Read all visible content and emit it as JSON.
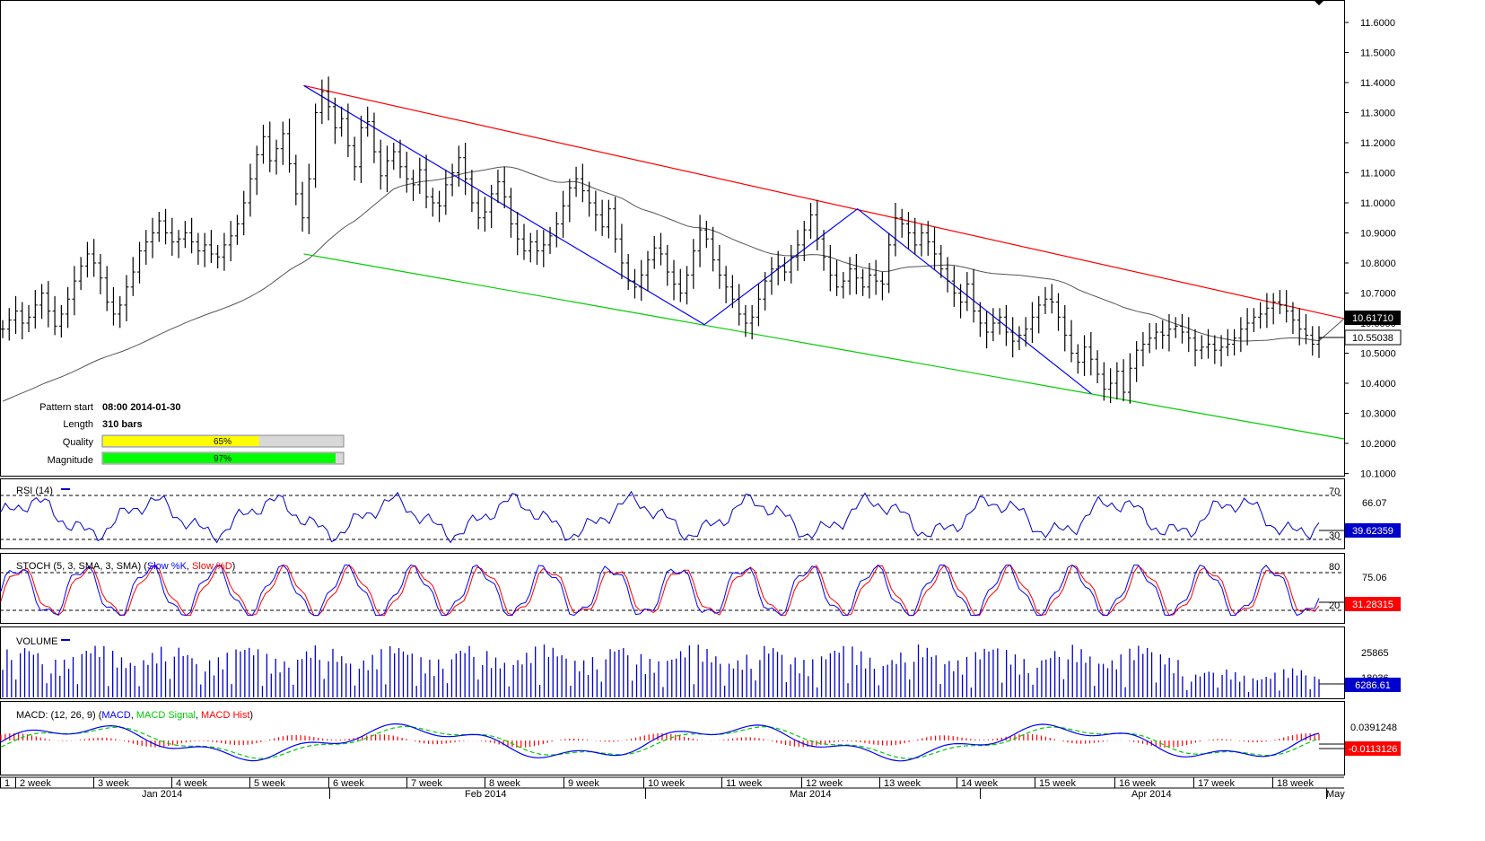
{
  "chart_data": [
    {
      "type": "candlestick",
      "panel": "price",
      "y_ticks": [
        "11.6000",
        "11.5000",
        "11.4000",
        "11.3000",
        "11.2000",
        "11.1000",
        "11.0000",
        "10.9000",
        "10.8000",
        "10.7000",
        "10.6000",
        "10.5000",
        "10.4000",
        "10.3000",
        "10.2000",
        "10.1000"
      ],
      "ylim": [
        10.08,
        11.66
      ],
      "price_labels": {
        "upper": "10.61710",
        "last": "10.55038"
      },
      "info": {
        "pattern_start_label": "Pattern start",
        "pattern_start_value": "08:00 2014-01-30",
        "length_label": "Length",
        "length_value": "310 bars",
        "quality_label": "Quality",
        "quality_value": "65%",
        "quality_pct": 0.65,
        "magnitude_label": "Magnitude",
        "magnitude_value": "97%",
        "magnitude_pct": 0.97
      },
      "lines": {
        "resistance": {
          "color": "#ff0000",
          "from": [
            0.226,
            11.39
          ],
          "to": [
            1.0,
            10.615
          ]
        },
        "support": {
          "color": "#00cc00",
          "from": [
            0.226,
            10.83
          ],
          "to": [
            1.0,
            10.215
          ]
        },
        "zigzag": {
          "color": "#0000ff",
          "points": [
            [
              0.226,
              11.39
            ],
            [
              0.524,
              10.595
            ],
            [
              0.638,
              10.98
            ],
            [
              0.812,
              10.365
            ]
          ]
        },
        "ma": {
          "color": "#555555"
        }
      },
      "ohlc_closes": [
        10.58,
        10.61,
        10.64,
        10.6,
        10.62,
        10.66,
        10.7,
        10.64,
        10.59,
        10.63,
        10.68,
        10.74,
        10.79,
        10.83,
        10.8,
        10.75,
        10.67,
        10.63,
        10.66,
        10.72,
        10.77,
        10.84,
        10.87,
        10.9,
        10.94,
        10.9,
        10.87,
        10.88,
        10.9,
        10.87,
        10.84,
        10.86,
        10.83,
        10.82,
        10.86,
        10.89,
        10.93,
        11.0,
        11.08,
        11.16,
        11.22,
        11.14,
        11.18,
        11.23,
        11.13,
        11.03,
        10.95,
        11.08,
        11.3,
        11.37,
        11.32,
        11.25,
        11.28,
        11.19,
        11.12,
        11.25,
        11.27,
        11.17,
        11.09,
        11.14,
        11.17,
        11.12,
        11.08,
        11.06,
        11.11,
        11.02,
        11.0,
        10.99,
        11.06,
        11.1,
        11.15,
        11.08,
        11.0,
        10.95,
        10.97,
        11.03,
        11.07,
        11.02,
        10.93,
        10.88,
        10.84,
        10.87,
        10.84,
        10.86,
        10.89,
        10.93,
        10.99,
        11.05,
        11.08,
        11.04,
        11.0,
        10.96,
        10.92,
        10.98,
        10.88,
        10.8,
        10.74,
        10.72,
        10.76,
        10.81,
        10.85,
        10.83,
        10.77,
        10.73,
        10.7,
        10.76,
        10.84,
        10.91,
        10.88,
        10.81,
        10.76,
        10.72,
        10.68,
        10.63,
        10.6,
        10.62,
        10.68,
        10.74,
        10.78,
        10.79,
        10.77,
        10.82,
        10.86,
        10.91,
        10.96,
        10.88,
        10.82,
        10.76,
        10.72,
        10.74,
        10.78,
        10.75,
        10.72,
        10.76,
        10.74,
        10.73,
        10.86,
        10.95,
        10.93,
        10.9,
        10.86,
        10.9,
        10.87,
        10.83,
        10.78,
        10.74,
        10.7,
        10.67,
        10.73,
        10.64,
        10.6,
        10.57,
        10.6,
        10.62,
        10.57,
        10.54,
        10.56,
        10.58,
        10.62,
        10.66,
        10.68,
        10.67,
        10.62,
        10.56,
        10.5,
        10.47,
        10.52,
        10.48,
        10.43,
        10.38,
        10.4,
        10.44,
        10.37,
        10.45,
        10.51,
        10.53,
        10.55,
        10.57,
        10.56,
        10.58,
        10.59,
        10.57,
        10.55,
        10.51,
        10.52,
        10.53,
        10.51,
        10.52,
        10.53,
        10.55,
        10.58,
        10.6,
        10.62,
        10.63,
        10.65,
        10.67,
        10.66,
        10.64,
        10.61,
        10.58,
        10.56,
        10.53,
        10.55
      ]
    },
    {
      "type": "line",
      "panel": "rsi",
      "label": "RSI (14)",
      "levels": [
        "70",
        "30"
      ],
      "right_ticks": [
        "66.07"
      ],
      "current": "39.62359",
      "ylim": [
        25,
        75
      ]
    },
    {
      "type": "line",
      "panel": "stoch",
      "label_prefix": "STOCH (5, 3, SMA, 3, SMA) (",
      "label_k": "Slow %K",
      "label_sep": ", ",
      "label_d": "Slow %D",
      "label_suffix": ")",
      "levels": [
        "80",
        "20"
      ],
      "right_ticks": [
        "75.06"
      ],
      "current": "31.28315",
      "ylim": [
        5,
        95
      ]
    },
    {
      "type": "bar",
      "panel": "volume",
      "label": "VOLUME",
      "right_ticks": [
        "25865",
        "18036"
      ],
      "current": "6286.61",
      "ylim": [
        0,
        31000
      ]
    },
    {
      "type": "bar",
      "panel": "macd",
      "label_prefix": "MACD: (12, 26, 9) (",
      "label_macd": "MACD",
      "label_sep": ", ",
      "label_signal": "MACD Signal",
      "label_hist": "MACD Hist",
      "label_suffix": ")",
      "right_ticks": [
        "0.0391248"
      ],
      "current": "-0.0113126",
      "ylim": [
        -0.09,
        0.07
      ]
    }
  ],
  "x_axis": {
    "weeks": [
      "1",
      "2 week",
      "3 week",
      "4 week",
      "5 week",
      "6 week",
      "7 week",
      "8 week",
      "9 week",
      "10 week",
      "11 week",
      "12 week",
      "13 week",
      "14 week",
      "15 week",
      "16 week",
      "17 week",
      "18 week"
    ],
    "months": [
      "Jan 2014",
      "Feb 2014",
      "Mar 2014",
      "Apr 2014",
      "May"
    ]
  },
  "colors": {
    "candle": "#000000",
    "ma": "#555555",
    "resistance": "#ff0000",
    "support": "#00cc00",
    "zigzag": "#0000ff",
    "rsi": "#0000cc",
    "stoch_k": "#0000ff",
    "stoch_d": "#ff0000",
    "volume": "#0000cc",
    "macd": "#0000ff",
    "signal": "#00cc00",
    "hist": "#ff0000",
    "quality": "#ffff00",
    "magnitude": "#00ff00",
    "label_box": "#0000cc",
    "label_red": "#ff0000"
  }
}
